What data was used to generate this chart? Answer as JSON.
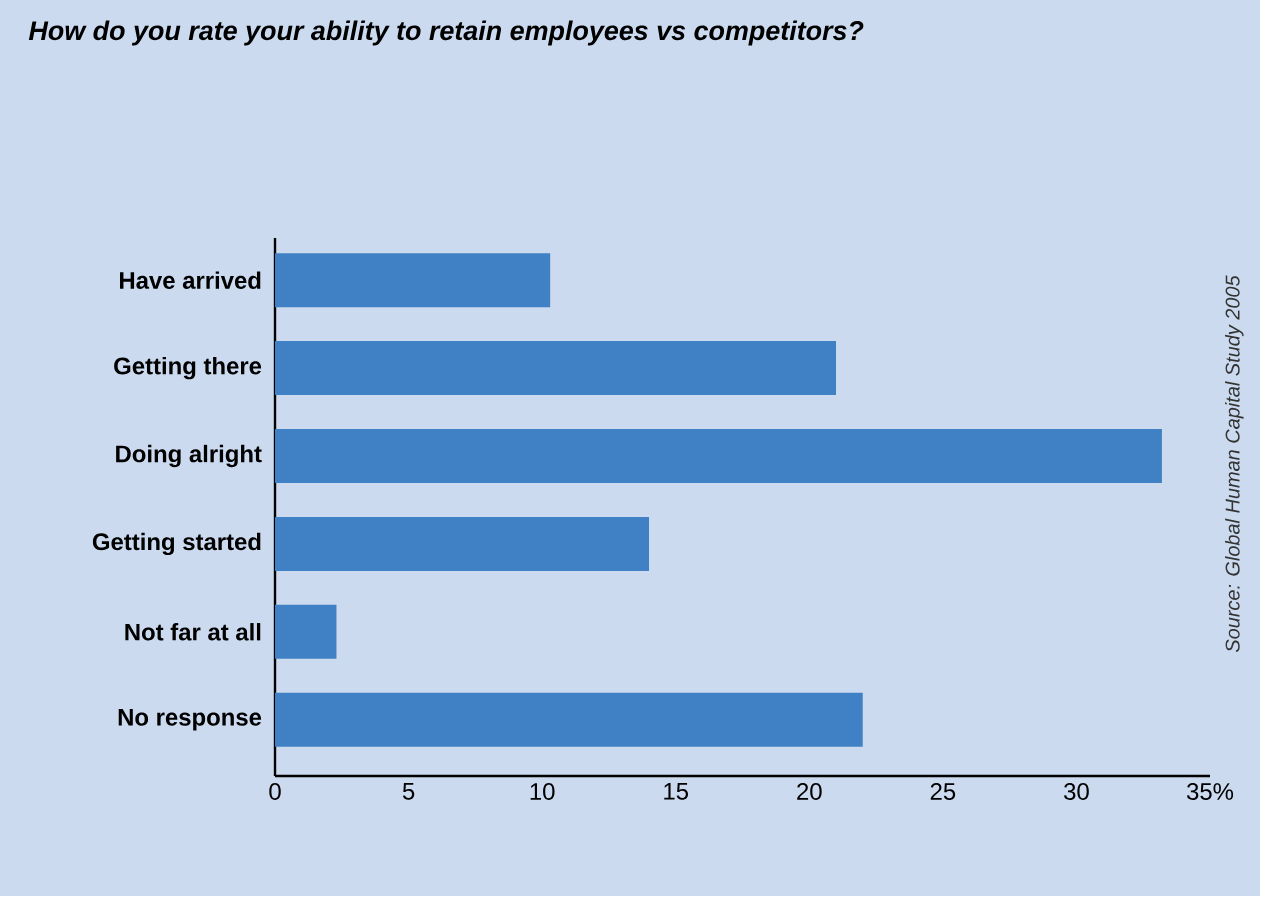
{
  "chart_data": {
    "type": "bar",
    "orientation": "horizontal",
    "title": "How do you rate your ability to retain employees vs competitors?",
    "categories": [
      "Have arrived",
      "Getting there",
      "Doing alright",
      "Getting started",
      "Not far at all",
      "No response"
    ],
    "values": [
      10.3,
      21,
      33.2,
      14,
      2.3,
      22
    ],
    "color": "#4080c4",
    "xlim": [
      0,
      35
    ],
    "xticks": [
      0,
      5,
      10,
      15,
      20,
      25,
      30,
      {
        "value": 35,
        "label": "35%"
      }
    ],
    "annotations": [
      "Source: Global Human Capital Study 2005"
    ]
  }
}
